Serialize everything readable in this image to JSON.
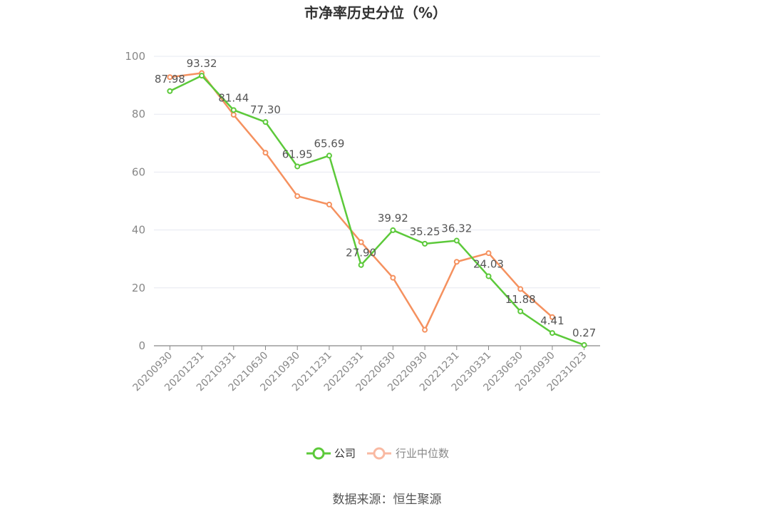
{
  "chart_data": {
    "type": "line",
    "title": "市净率历史分位（%）",
    "categories": [
      "20200930",
      "20201231",
      "20210331",
      "20210630",
      "20210930",
      "20211231",
      "20220331",
      "20220630",
      "20220930",
      "20221231",
      "20230331",
      "20230630",
      "20230930",
      "20231023"
    ],
    "series": [
      {
        "name": "公司",
        "color": "#5cc93a",
        "values": [
          87.98,
          93.32,
          81.44,
          77.3,
          61.95,
          65.69,
          27.9,
          39.92,
          35.25,
          36.32,
          24.03,
          11.88,
          4.41,
          0.27
        ],
        "labels": [
          "87.98",
          "93.32",
          "81.44",
          "77.30",
          "61.95",
          "65.69",
          "27.90",
          "39.92",
          "35.25",
          "36.32",
          "24.03",
          "11.88",
          "4.41",
          "0.27"
        ]
      },
      {
        "name": "行业中位数",
        "color": "#f5915f",
        "values": [
          92.8,
          94.2,
          79.8,
          66.7,
          51.7,
          48.8,
          35.8,
          23.5,
          5.5,
          29.0,
          32.0,
          19.6,
          9.9,
          null
        ]
      }
    ],
    "ylim": [
      0,
      100
    ],
    "yticks": [
      "0",
      "20",
      "40",
      "60",
      "80",
      "100"
    ],
    "grid": true,
    "legend": "bottom-center"
  },
  "source": "数据来源：恒生聚源"
}
